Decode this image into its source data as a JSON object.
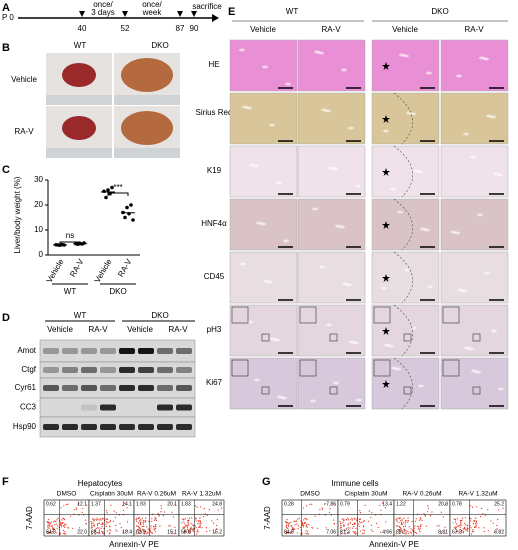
{
  "panel_labels": [
    "A",
    "B",
    "C",
    "D",
    "E",
    "F",
    "G"
  ],
  "a": {
    "start": "P 0",
    "days": [
      "40",
      "52",
      "87",
      "90"
    ],
    "notes": [
      "once/",
      "3 days",
      "once/",
      "week",
      "sacrifice"
    ]
  },
  "b": {
    "columns": [
      "WT",
      "DKO"
    ],
    "rows": [
      "Vehicle",
      "RA-V"
    ]
  },
  "chart_data": {
    "type": "scatter",
    "y_label": "Liver/body weight (%)",
    "categories": [
      "Vehicle",
      "RA-V",
      "Vehicle",
      "RA-V"
    ],
    "groups": [
      "WT",
      "DKO"
    ],
    "points": [
      [
        4.1,
        4.0,
        3.9,
        4.2,
        4.0
      ],
      [
        4.5,
        4.3,
        4.6,
        4.4,
        4.8
      ],
      [
        25.5,
        23.0,
        26.0,
        24.5,
        27.0
      ],
      [
        17.0,
        15.0,
        19.0,
        16.5,
        20.0,
        14.0
      ]
    ],
    "means": [
      4.0,
      4.5,
      25.2,
      16.9
    ],
    "ylim": [
      0,
      30
    ],
    "yticks": [
      0,
      10,
      20,
      30
    ],
    "annotations": [
      "ns",
      "***"
    ],
    "color": "#000000"
  },
  "d": {
    "groups": [
      "WT",
      "DKO"
    ],
    "lanes": [
      "Vehicle",
      "RA-V",
      "Vehicle",
      "RA-V"
    ],
    "proteins": [
      "Amot",
      "Ctgf",
      "Cyr61",
      "CC3",
      "Hsp90"
    ]
  },
  "e": {
    "groups": [
      "WT",
      "DKO"
    ],
    "columns": [
      "Vehicle",
      "RA-V",
      "Vehicle",
      "RA-V"
    ],
    "stains": [
      "HE",
      "Sirius Red",
      "K19",
      "HNF4α",
      "CD45",
      "pH3",
      "Ki67"
    ]
  },
  "f": {
    "title": "Hepatocytes",
    "y_label": "7-AAD",
    "x_label": "Annexin-V  PE",
    "plots": [
      {
        "label": "DMSO",
        "quadrants": [
          "0.62",
          "12.1",
          "64.8",
          "22.0"
        ]
      },
      {
        "label": "Cisplatin 30uM",
        "quadrants": [
          "1.37",
          "14.1",
          "66.1",
          "18.4"
        ]
      },
      {
        "label": "RA-V 0.26uM",
        "quadrants": [
          "1.93",
          "20.1",
          "62.9",
          "15.1"
        ]
      },
      {
        "label": "RA-V 1.32uM",
        "quadrants": [
          "1.83",
          "24.8",
          "58.8",
          "15.2"
        ]
      }
    ]
  },
  "g": {
    "title": "Immune cells",
    "y_label": "7-AAD",
    "x_label": "Annexin-V  PE",
    "plots": [
      {
        "label": "DMSO",
        "quadrants": [
          "0.28",
          "7.86",
          "84.8",
          "7.06"
        ]
      },
      {
        "label": "Cisplatin 30uM",
        "quadrants": [
          "0.79",
          "13.4",
          "81.2",
          "4.66"
        ]
      },
      {
        "label": "RA-V 0.26uM",
        "quadrants": [
          "1.22",
          "20.8",
          "69.2",
          "8.81"
        ]
      },
      {
        "label": "RA-V 1.32uM",
        "quadrants": [
          "0.78",
          "25.2",
          "67.2",
          "6.82"
        ]
      }
    ]
  }
}
